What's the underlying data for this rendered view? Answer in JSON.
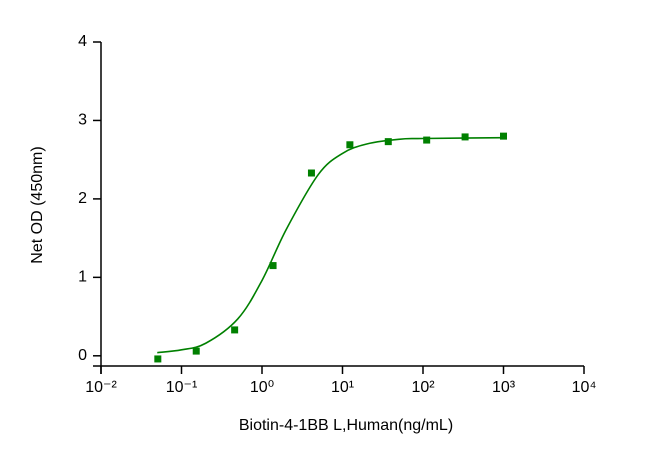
{
  "chart_data": {
    "type": "scatter",
    "x_label": "Biotin-4-1BB L,Human(ng/mL)",
    "y_label": "Net OD (450nm)",
    "x_scale": "log",
    "xlim": [
      0.01,
      10000
    ],
    "xticks": [
      {
        "value": 0.01,
        "label": "10⁻²"
      },
      {
        "value": 0.1,
        "label": "10⁻¹"
      },
      {
        "value": 1,
        "label": "10⁰"
      },
      {
        "value": 10,
        "label": "10¹"
      },
      {
        "value": 100,
        "label": "10²"
      },
      {
        "value": 1000,
        "label": "10³"
      },
      {
        "value": 10000,
        "label": "10⁴"
      }
    ],
    "ylim": [
      -0.13,
      4
    ],
    "yticks": [
      0,
      1,
      2,
      3,
      4
    ],
    "color": "#008000",
    "x": [
      0.0508,
      0.1524,
      0.4572,
      1.372,
      4.115,
      12.35,
      37.04,
      111.1,
      333.3,
      1000
    ],
    "values": [
      -0.04,
      0.06,
      0.33,
      1.15,
      2.33,
      2.69,
      2.73,
      2.75,
      2.79,
      2.8
    ],
    "fit": {
      "x": [
        0.05,
        0.1,
        0.2,
        0.5,
        1,
        2,
        5,
        10,
        20,
        50,
        100,
        1000
      ],
      "values": [
        0.04,
        0.076,
        0.16,
        0.47,
        0.96,
        1.61,
        2.31,
        2.58,
        2.7,
        2.76,
        2.77,
        2.78
      ]
    }
  }
}
